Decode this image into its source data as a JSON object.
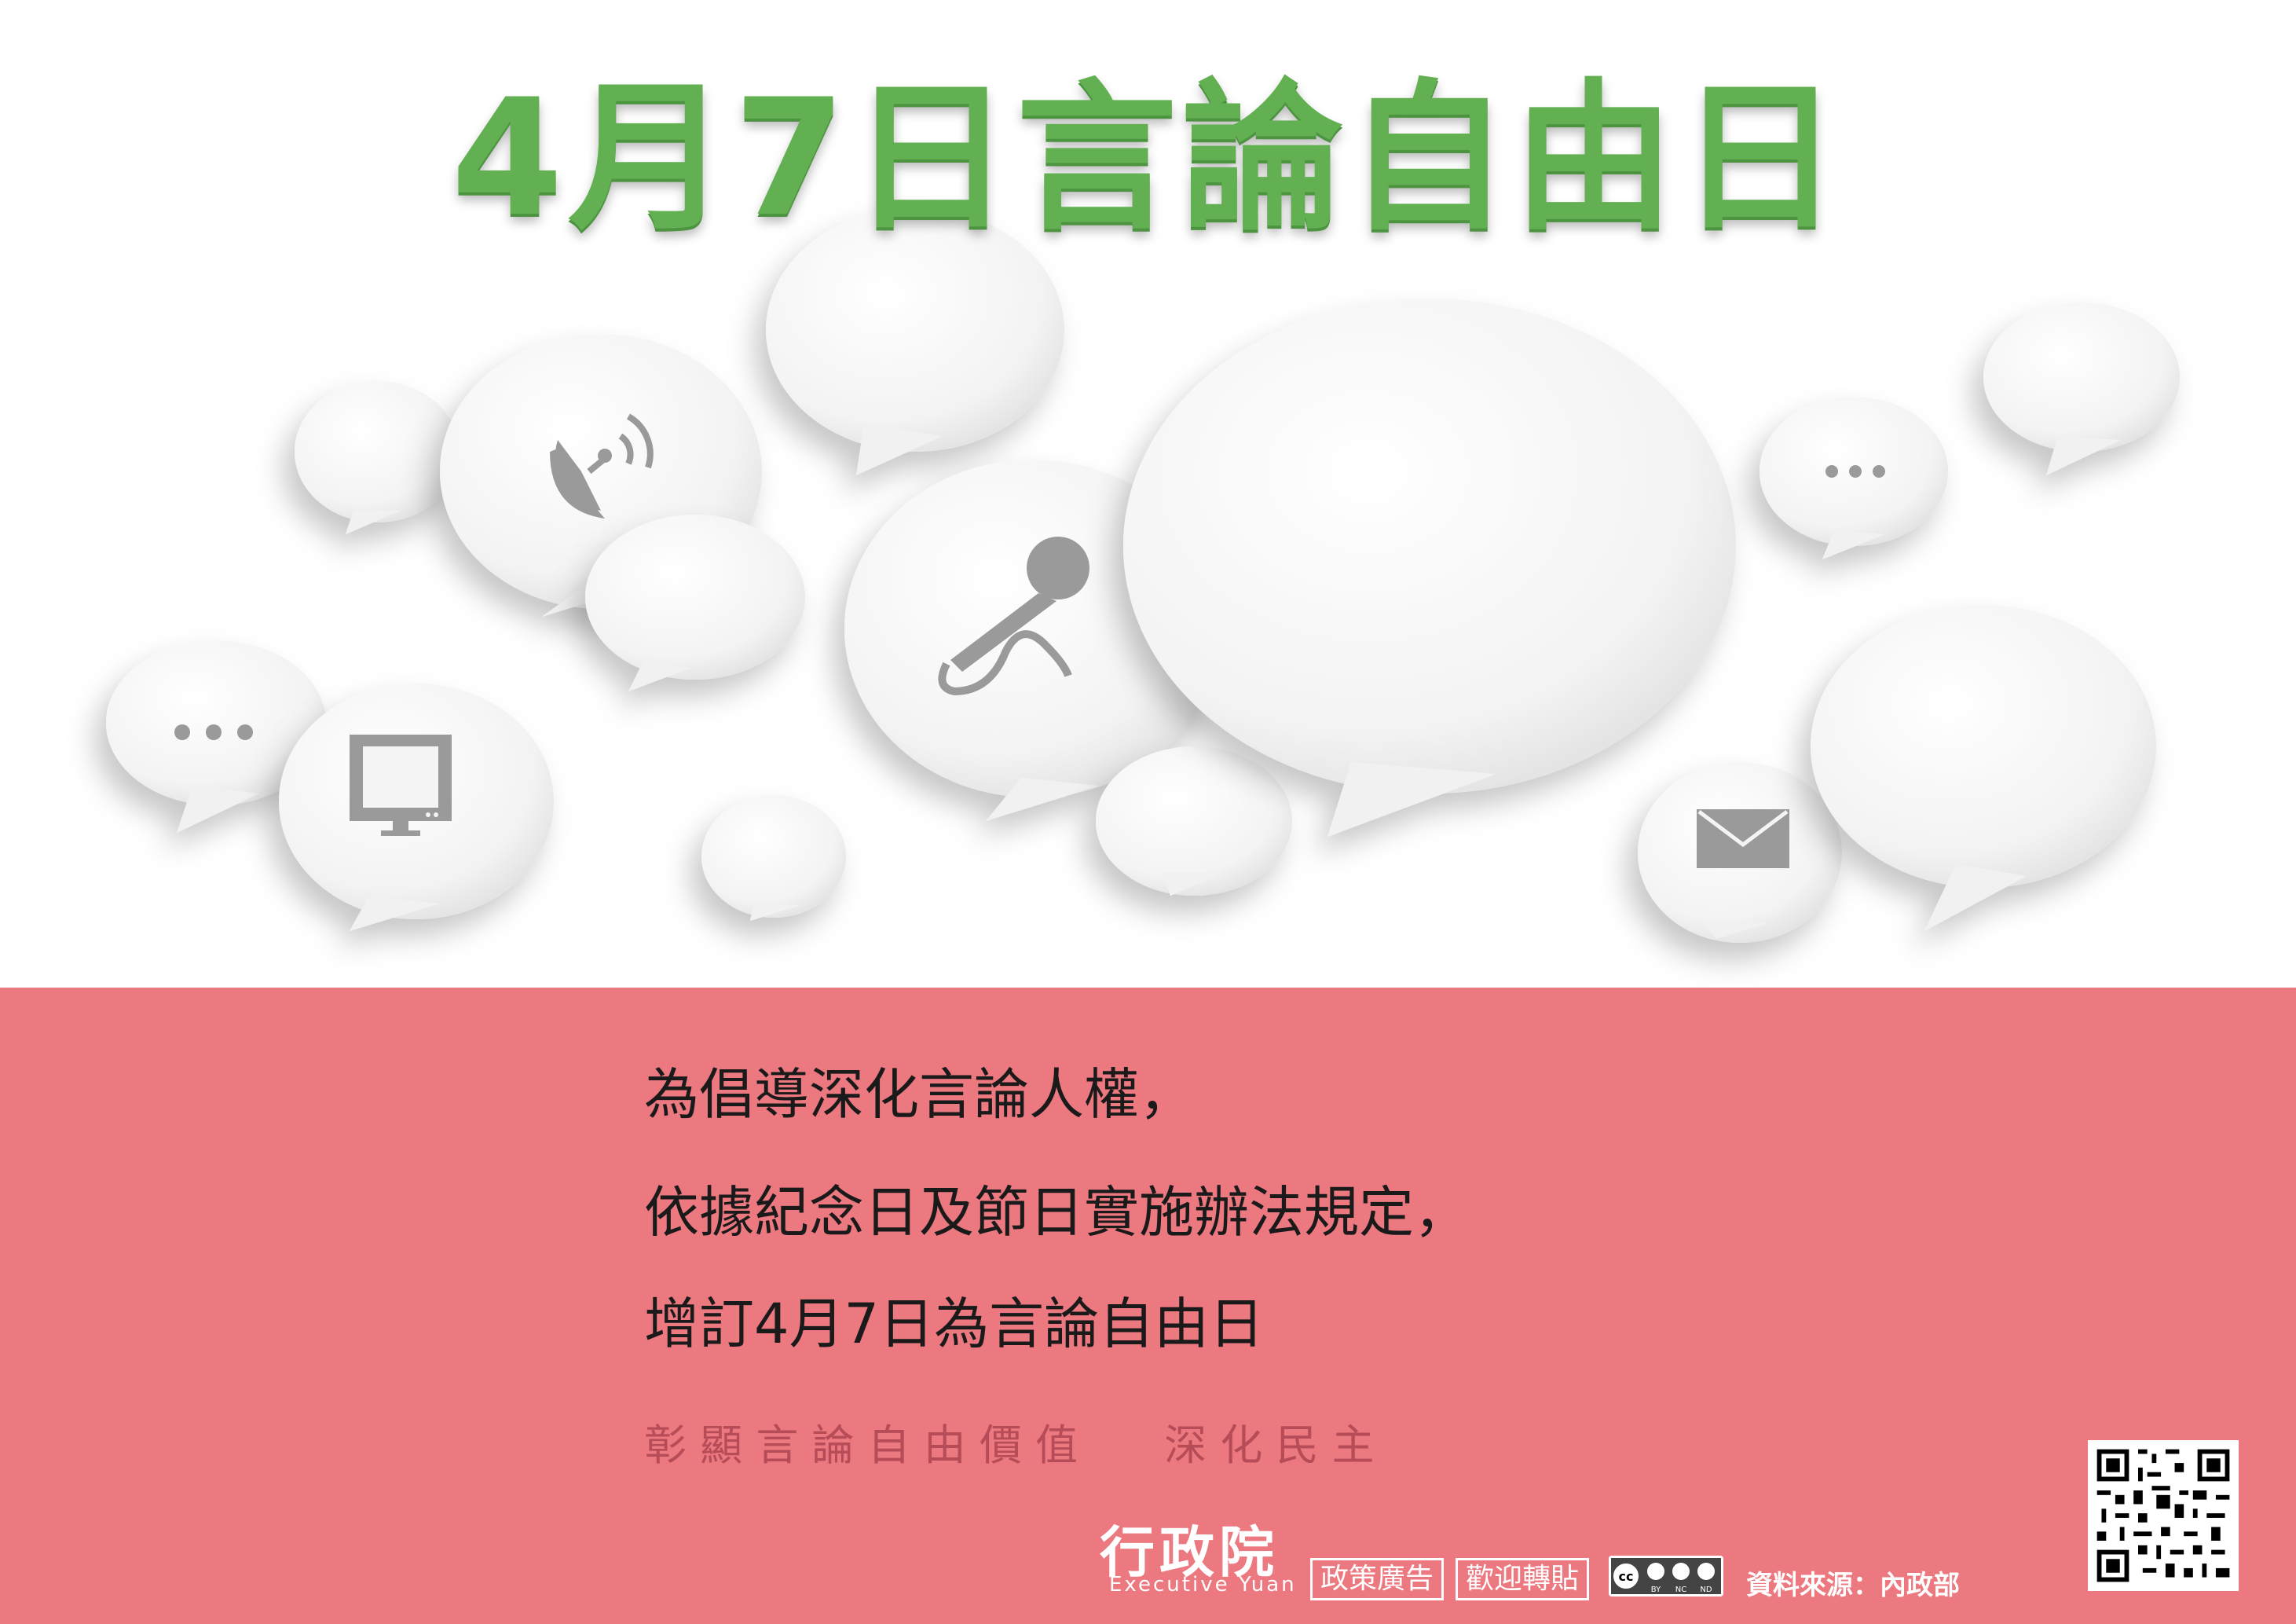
{
  "title": "4月7日言論自由日",
  "message": {
    "line1": "為倡導深化言論人權，",
    "line2": "依據紀念日及節日實施辦法規定，",
    "line3": "增訂4月7日為言論自由日"
  },
  "motto": {
    "part1": "彰 顯 言 論 自 由 價 值",
    "part2": "深 化 民 主"
  },
  "footer": {
    "logo_cn": "行政院",
    "logo_en": "Executive Yuan",
    "tag1": "政策廣告",
    "tag2": "歡迎轉貼",
    "license_icon": "cc-by-nc-nd-icon",
    "cc_labels": [
      "BY",
      "NC",
      "ND"
    ],
    "source": "資料來源：內政部"
  },
  "icons": [
    "satellite-dish-icon",
    "microphone-icon",
    "monitor-icon",
    "envelope-icon",
    "ellipsis-icon",
    "qr-code"
  ],
  "colors": {
    "title_green": "#62b052",
    "band_pink": "#ec7880",
    "motto_text": "#b64c58",
    "bubble_white": "#f4f4f4",
    "icon_gray": "#9a9a9a"
  }
}
